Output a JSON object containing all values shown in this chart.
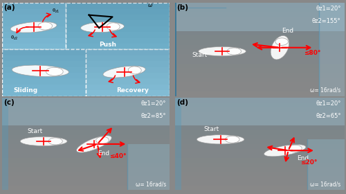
{
  "figsize": [
    5.0,
    2.8
  ],
  "dpi": 100,
  "bg_light_blue": "#7bb8d4",
  "bg_mid_blue": "#5a9ec0",
  "bg_dark_blue": "#3a7a9c",
  "bg_very_light": "#a8d0e8",
  "panel_a_bg": "#8ab8d0",
  "text_white": "#ffffff",
  "text_black": "#000000",
  "text_dark": "#111111",
  "red_color": "#cc0000",
  "label_fs": 6.5,
  "annot_fs": 5.5,
  "title_fs": 6.0,
  "panel_lbl_fs": 7.5,
  "panels": {
    "b": {
      "theta1": "θz1=20°",
      "theta2": "θz2=155°",
      "angle_text": "≤80°",
      "omega": "ω= 16rad/s"
    },
    "c": {
      "theta1": "θz1=20°",
      "theta2": "θz2=85°",
      "angle_text": "≤40°",
      "omega": "ω= 16rad/s"
    },
    "d": {
      "theta1": "θz1=20°",
      "theta2": "θz2=65°",
      "angle_text": "≤20°",
      "omega": "ω= 16rad/s"
    }
  }
}
